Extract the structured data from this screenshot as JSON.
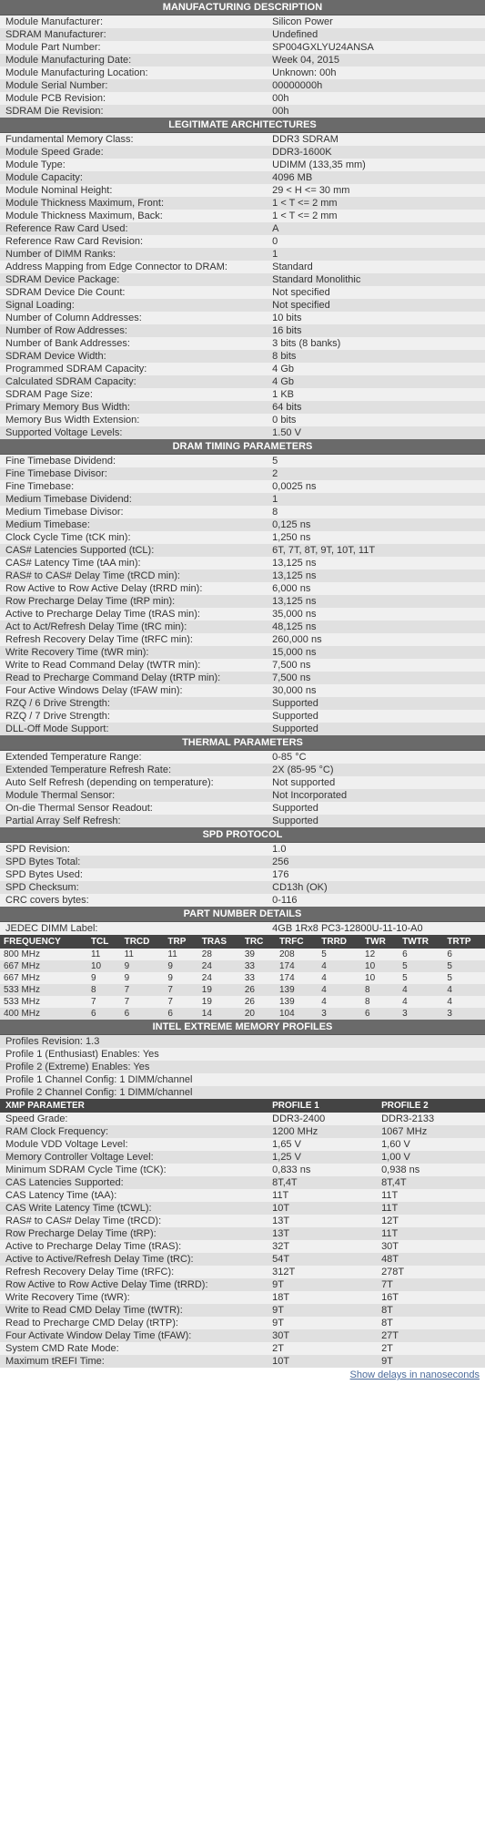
{
  "sections": {
    "mfg": {
      "title": "MANUFACTURING DESCRIPTION",
      "rows": [
        {
          "k": "Module Manufacturer:",
          "v": "Silicon Power"
        },
        {
          "k": "SDRAM Manufacturer:",
          "v": "Undefined"
        },
        {
          "k": "Module Part Number:",
          "v": "SP004GXLYU24ANSA"
        },
        {
          "k": "Module Manufacturing Date:",
          "v": "Week 04, 2015"
        },
        {
          "k": "Module Manufacturing Location:",
          "v": "Unknown: 00h"
        },
        {
          "k": "Module Serial Number:",
          "v": "00000000h"
        },
        {
          "k": "Module PCB Revision:",
          "v": "00h"
        },
        {
          "k": "SDRAM Die Revision:",
          "v": "00h"
        }
      ]
    },
    "arch": {
      "title": "LEGITIMATE ARCHITECTURES",
      "rows": [
        {
          "k": "Fundamental Memory Class:",
          "v": "DDR3 SDRAM"
        },
        {
          "k": "Module Speed Grade:",
          "v": "DDR3-1600K"
        },
        {
          "k": "Module Type:",
          "v": "UDIMM (133,35 mm)"
        },
        {
          "k": "Module Capacity:",
          "v": "4096 MB"
        },
        {
          "k": "Module Nominal Height:",
          "v": "29 < H <= 30 mm"
        },
        {
          "k": "Module Thickness Maximum, Front:",
          "v": "1 < T <= 2 mm"
        },
        {
          "k": "Module Thickness Maximum, Back:",
          "v": "1 < T <= 2 mm"
        },
        {
          "k": "Reference Raw Card Used:",
          "v": "A"
        },
        {
          "k": "Reference Raw Card Revision:",
          "v": "0"
        },
        {
          "k": "Number of DIMM Ranks:",
          "v": "1"
        },
        {
          "k": "Address Mapping from Edge Connector to DRAM:",
          "v": "Standard"
        },
        {
          "k": "SDRAM Device Package:",
          "v": "Standard Monolithic"
        },
        {
          "k": "SDRAM Device Die Count:",
          "v": "Not specified"
        },
        {
          "k": "Signal Loading:",
          "v": "Not specified"
        },
        {
          "k": "Number of Column Addresses:",
          "v": "10 bits"
        },
        {
          "k": "Number of Row Addresses:",
          "v": "16 bits"
        },
        {
          "k": "Number of Bank Addresses:",
          "v": "3 bits (8 banks)"
        },
        {
          "k": "SDRAM Device Width:",
          "v": "8 bits"
        },
        {
          "k": "Programmed SDRAM Capacity:",
          "v": "4 Gb"
        },
        {
          "k": "Calculated SDRAM Capacity:",
          "v": "4 Gb"
        },
        {
          "k": "SDRAM Page Size:",
          "v": "1 KB"
        },
        {
          "k": "Primary Memory Bus Width:",
          "v": "64 bits"
        },
        {
          "k": "Memory Bus Width Extension:",
          "v": "0 bits"
        },
        {
          "k": "Supported Voltage Levels:",
          "v": "1.50 V"
        }
      ]
    },
    "timing": {
      "title": "DRAM TIMING PARAMETERS",
      "rows": [
        {
          "k": "Fine Timebase Dividend:",
          "v": "5"
        },
        {
          "k": "Fine Timebase Divisor:",
          "v": "2"
        },
        {
          "k": "Fine Timebase:",
          "v": "0,0025 ns"
        },
        {
          "k": "Medium Timebase Dividend:",
          "v": "1"
        },
        {
          "k": "Medium Timebase Divisor:",
          "v": "8"
        },
        {
          "k": "Medium Timebase:",
          "v": "0,125 ns"
        },
        {
          "k": "Clock Cycle Time (tCK min):",
          "v": "1,250 ns"
        },
        {
          "k": "CAS# Latencies Supported (tCL):",
          "v": "6T, 7T, 8T, 9T, 10T, 11T"
        },
        {
          "k": "CAS# Latency Time (tAA min):",
          "v": "13,125 ns"
        },
        {
          "k": "RAS# to CAS# Delay Time (tRCD min):",
          "v": "13,125 ns"
        },
        {
          "k": "Row Active to Row Active Delay (tRRD min):",
          "v": "6,000 ns"
        },
        {
          "k": "Row Precharge Delay Time (tRP min):",
          "v": "13,125 ns"
        },
        {
          "k": "Active to Precharge Delay Time (tRAS min):",
          "v": "35,000 ns"
        },
        {
          "k": "Act to Act/Refresh Delay Time (tRC min):",
          "v": "48,125 ns"
        },
        {
          "k": "Refresh Recovery Delay Time (tRFC min):",
          "v": "260,000 ns"
        },
        {
          "k": "Write Recovery Time (tWR min):",
          "v": "15,000 ns"
        },
        {
          "k": "Write to Read Command Delay (tWTR min):",
          "v": "7,500 ns"
        },
        {
          "k": "Read to Precharge Command Delay (tRTP min):",
          "v": "7,500 ns"
        },
        {
          "k": "Four Active Windows Delay (tFAW min):",
          "v": "30,000 ns"
        },
        {
          "k": "RZQ / 6 Drive Strength:",
          "v": "Supported"
        },
        {
          "k": "RZQ / 7 Drive Strength:",
          "v": "Supported"
        },
        {
          "k": "DLL-Off Mode Support:",
          "v": "Supported"
        }
      ]
    },
    "thermal": {
      "title": "THERMAL PARAMETERS",
      "rows": [
        {
          "k": "Extended Temperature Range:",
          "v": "0-85 °C"
        },
        {
          "k": "Extended Temperature Refresh Rate:",
          "v": "2X (85-95 °C)"
        },
        {
          "k": "Auto Self Refresh (depending on temperature):",
          "v": "Not supported"
        },
        {
          "k": "Module Thermal Sensor:",
          "v": "Not Incorporated"
        },
        {
          "k": "On-die Thermal Sensor Readout:",
          "v": "Supported"
        },
        {
          "k": "Partial Array Self Refresh:",
          "v": "Supported"
        }
      ]
    },
    "spd": {
      "title": "SPD PROTOCOL",
      "rows": [
        {
          "k": "SPD Revision:",
          "v": "1.0"
        },
        {
          "k": "SPD Bytes Total:",
          "v": "256"
        },
        {
          "k": "SPD Bytes Used:",
          "v": "176"
        },
        {
          "k": "SPD Checksum:",
          "v": "CD13h (OK)"
        },
        {
          "k": "CRC covers bytes:",
          "v": "0-116"
        }
      ]
    },
    "pn": {
      "title": "PART NUMBER DETAILS",
      "jedec": {
        "k": "JEDEC DIMM Label:",
        "v": "4GB 1Rx8 PC3-12800U-11-10-A0"
      }
    },
    "freq": {
      "cols": [
        "FREQUENCY",
        "TCL",
        "TRCD",
        "TRP",
        "TRAS",
        "TRC",
        "TRFC",
        "TRRD",
        "TWR",
        "TWTR",
        "TRTP"
      ],
      "rows": [
        [
          "800 MHz",
          "11",
          "11",
          "11",
          "28",
          "39",
          "208",
          "5",
          "12",
          "6",
          "6"
        ],
        [
          "667 MHz",
          "10",
          "9",
          "9",
          "24",
          "33",
          "174",
          "4",
          "10",
          "5",
          "5"
        ],
        [
          "667 MHz",
          "9",
          "9",
          "9",
          "24",
          "33",
          "174",
          "4",
          "10",
          "5",
          "5"
        ],
        [
          "533 MHz",
          "8",
          "7",
          "7",
          "19",
          "26",
          "139",
          "4",
          "8",
          "4",
          "4"
        ],
        [
          "533 MHz",
          "7",
          "7",
          "7",
          "19",
          "26",
          "139",
          "4",
          "8",
          "4",
          "4"
        ],
        [
          "400 MHz",
          "6",
          "6",
          "6",
          "14",
          "20",
          "104",
          "3",
          "6",
          "3",
          "3"
        ]
      ]
    },
    "xmp": {
      "title": "INTEL EXTREME MEMORY PROFILES",
      "info": [
        "Profiles Revision: 1.3",
        "Profile 1 (Enthusiast) Enables: Yes",
        "Profile 2 (Extreme) Enables: Yes",
        "Profile 1 Channel Config: 1 DIMM/channel",
        "Profile 2 Channel Config: 1 DIMM/channel"
      ],
      "cols": [
        "XMP PARAMETER",
        "PROFILE 1",
        "PROFILE 2"
      ],
      "rows": [
        [
          "Speed Grade:",
          "DDR3-2400",
          "DDR3-2133"
        ],
        [
          "RAM Clock Frequency:",
          "1200 MHz",
          "1067 MHz"
        ],
        [
          "Module VDD Voltage Level:",
          "1,65 V",
          "1,60 V"
        ],
        [
          "Memory Controller Voltage Level:",
          "1,25 V",
          "1,00 V"
        ],
        [
          "Minimum SDRAM Cycle Time (tCK):",
          "0,833 ns",
          "0,938 ns"
        ],
        [
          "CAS Latencies Supported:",
          "8T,4T",
          "8T,4T"
        ],
        [
          "CAS Latency Time (tAA):",
          "11T",
          "11T"
        ],
        [
          "CAS Write Latency Time (tCWL):",
          "10T",
          "11T"
        ],
        [
          "RAS# to CAS# Delay Time (tRCD):",
          "13T",
          "12T"
        ],
        [
          "Row Precharge Delay Time (tRP):",
          "13T",
          "11T"
        ],
        [
          "Active to Precharge Delay Time (tRAS):",
          "32T",
          "30T"
        ],
        [
          "Active to Active/Refresh Delay Time (tRC):",
          "54T",
          "48T"
        ],
        [
          "Refresh Recovery Delay Time (tRFC):",
          "312T",
          "278T"
        ],
        [
          "Row Active to Row Active Delay Time (tRRD):",
          "9T",
          "7T"
        ],
        [
          "Write Recovery Time (tWR):",
          "18T",
          "16T"
        ],
        [
          "Write to Read CMD Delay Time (tWTR):",
          "9T",
          "8T"
        ],
        [
          "Read to Precharge CMD Delay (tRTP):",
          "9T",
          "8T"
        ],
        [
          "Four Activate Window Delay Time (tFAW):",
          "30T",
          "27T"
        ],
        [
          "System CMD Rate Mode:",
          "2T",
          "2T"
        ],
        [
          "Maximum tREFI Time:",
          "10T",
          "9T"
        ]
      ],
      "link": "Show delays in nanoseconds"
    }
  }
}
